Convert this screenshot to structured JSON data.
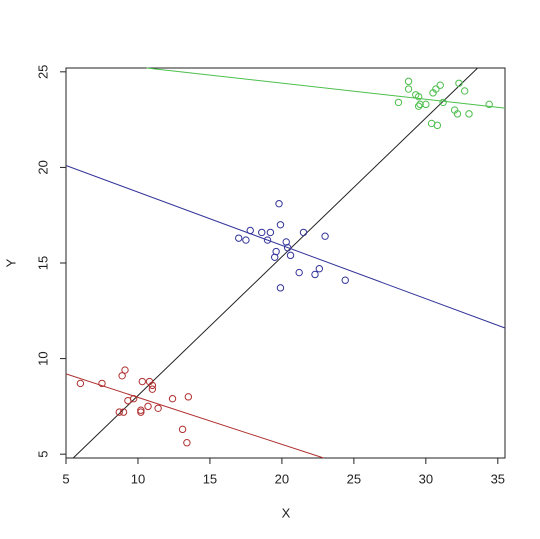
{
  "chart_data": {
    "type": "scatter",
    "xlabel": "X",
    "ylabel": "Y",
    "xlim": [
      5,
      35.5
    ],
    "ylim": [
      4.8,
      25.2
    ],
    "xticks": [
      5,
      10,
      15,
      20,
      25,
      30,
      35
    ],
    "yticks": [
      5,
      10,
      15,
      20,
      25
    ],
    "series": [
      {
        "color": "#b03030",
        "x": [
          6,
          7.5,
          8.7,
          9,
          8.9,
          9.1,
          9.3,
          9.7,
          10.2,
          10.3,
          10.2,
          10.7,
          10.8,
          11,
          11,
          11.4,
          12.4,
          13.1,
          13.4,
          13.5
        ],
        "values": [
          8.7,
          8.7,
          7.2,
          7.2,
          9.1,
          9.4,
          7.8,
          7.9,
          7.3,
          8.8,
          7.2,
          7.5,
          8.8,
          8.6,
          8.4,
          7.4,
          7.9,
          6.3,
          5.6,
          8
        ]
      },
      {
        "color": "#34349a",
        "x": [
          17,
          17.5,
          17.8,
          18.6,
          19,
          19.2,
          19.5,
          19.6,
          19.8,
          19.9,
          19.9,
          20.3,
          20.4,
          20.6,
          21.2,
          21.5,
          22.3,
          22.6,
          23,
          24.4
        ],
        "values": [
          16.3,
          16.2,
          16.7,
          16.6,
          16.2,
          16.6,
          15.3,
          15.6,
          18.1,
          17,
          13.7,
          16.1,
          15.8,
          15.4,
          14.5,
          16.6,
          14.4,
          14.7,
          16.4,
          14.1
        ]
      },
      {
        "color": "#4cbf4c",
        "x": [
          28.1,
          28.8,
          28.8,
          29.3,
          29.5,
          29.5,
          29.6,
          30,
          30.4,
          30.5,
          30.8,
          30.7,
          31,
          31.2,
          32,
          32.2,
          32.3,
          32.7,
          33,
          34.4
        ],
        "values": [
          23.4,
          24.5,
          24.1,
          23.8,
          23.2,
          23.7,
          23.3,
          23.3,
          22.3,
          23.9,
          22.2,
          24.1,
          24.3,
          23.4,
          23,
          22.8,
          24.4,
          24,
          22.8,
          23.3
        ]
      }
    ],
    "lines": [
      {
        "color": "#222222",
        "x": [
          5.5,
          33.6
        ],
        "values": [
          4.8,
          25.2
        ]
      },
      {
        "color": "#34349a",
        "x": [
          5,
          35.5
        ],
        "values": [
          20.1,
          11.6
        ]
      },
      {
        "color": "#b03030",
        "x": [
          5,
          22.9
        ],
        "values": [
          9.2,
          4.8
        ]
      },
      {
        "color": "#4cbf4c",
        "x": [
          10.6,
          35.5
        ],
        "values": [
          25.2,
          23.1
        ]
      }
    ]
  }
}
